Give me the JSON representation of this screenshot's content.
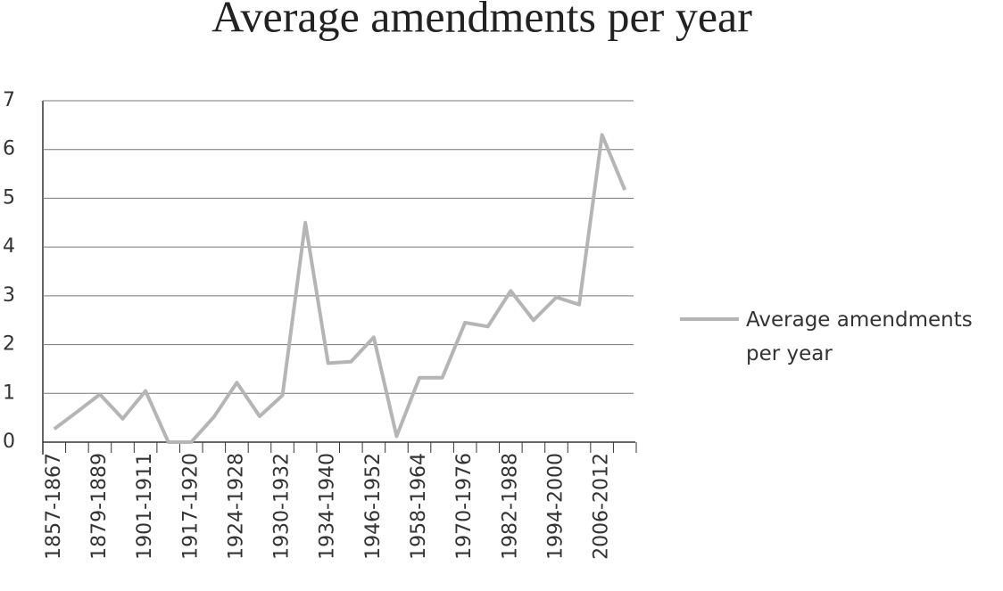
{
  "chart_data": {
    "type": "line",
    "title": "Average amendments per year",
    "categories": [
      "1857-1867",
      null,
      "1879-1889",
      null,
      "1901-1911",
      null,
      "1917-1920",
      null,
      "1924-1928",
      null,
      "1930-1932",
      null,
      "1934-1940",
      null,
      "1946-1952",
      null,
      "1958-1964",
      null,
      "1970-1976",
      null,
      "1982-1988",
      null,
      "1994-2000",
      null,
      "2006-2012",
      null
    ],
    "series": [
      {
        "name": "Average amendments per year",
        "color": "#b5b5b5",
        "values": [
          0.27,
          0.62,
          0.98,
          0.48,
          1.05,
          0.0,
          0.0,
          0.52,
          1.22,
          0.53,
          0.96,
          4.5,
          1.62,
          1.65,
          2.15,
          0.12,
          1.32,
          1.32,
          2.45,
          2.37,
          3.1,
          2.5,
          2.97,
          2.82,
          6.3,
          5.17
        ]
      }
    ],
    "ylim": [
      0,
      7
    ],
    "yticks": [
      0,
      1,
      2,
      3,
      4,
      5,
      6,
      7
    ],
    "grid": true,
    "legend": "right"
  }
}
